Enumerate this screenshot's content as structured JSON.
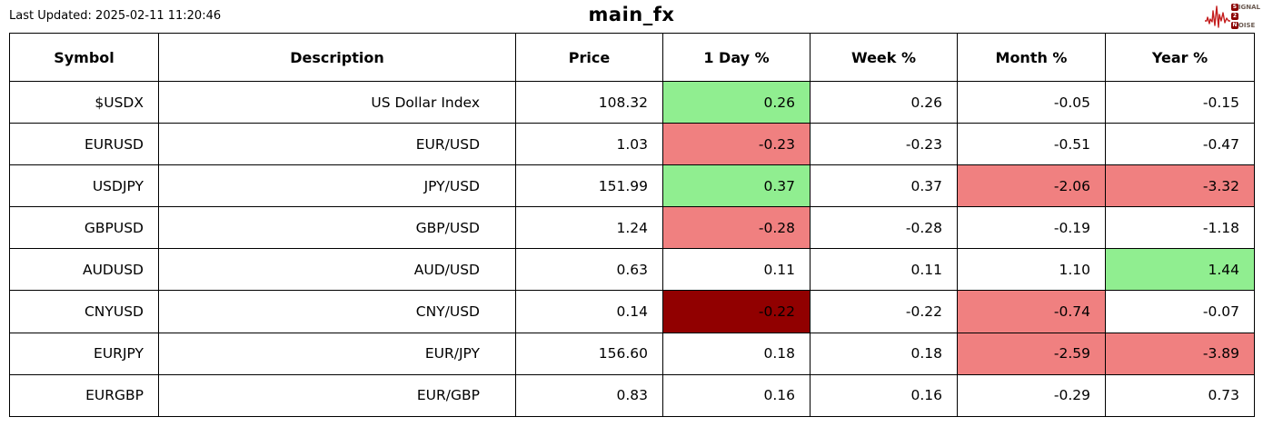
{
  "header": {
    "last_updated": "Last Updated: 2025-02-11 11:20:46",
    "title": "main_fx"
  },
  "logo": {
    "line1_badge": "S",
    "line1_rest": "IGNAL",
    "line2_badge": "2",
    "line2_rest": "",
    "line3_badge": "N",
    "line3_rest": "OISE",
    "waveform_color": "#c41e1e",
    "badge_color": "#8B0000"
  },
  "colors": {
    "up": "#90EE90",
    "down": "#F08080",
    "down_strong": "#910000",
    "text": "#000000"
  },
  "chart_data": {
    "type": "table",
    "title": "main_fx",
    "last_updated": "2025-02-11 11:20:46",
    "columns": [
      "Symbol",
      "Description",
      "Price",
      "1 Day %",
      "Week %",
      "Month %",
      "Year %"
    ],
    "rows": [
      [
        "$USDX",
        "US Dollar Index",
        108.32,
        0.26,
        0.26,
        -0.05,
        -0.15
      ],
      [
        "EURUSD",
        "EUR/USD",
        1.03,
        -0.23,
        -0.23,
        -0.51,
        -0.47
      ],
      [
        "USDJPY",
        "JPY/USD",
        151.99,
        0.37,
        0.37,
        -2.06,
        -3.32
      ],
      [
        "GBPUSD",
        "GBP/USD",
        1.24,
        -0.28,
        -0.28,
        -0.19,
        -1.18
      ],
      [
        "AUDUSD",
        "AUD/USD",
        0.63,
        0.11,
        0.11,
        1.1,
        1.44
      ],
      [
        "CNYUSD",
        "CNY/USD",
        0.14,
        -0.22,
        -0.22,
        -0.74,
        -0.07
      ],
      [
        "EURJPY",
        "EUR/JPY",
        156.6,
        0.18,
        0.18,
        -2.59,
        -3.89
      ],
      [
        "EURGBP",
        "EUR/GBP",
        0.83,
        0.16,
        0.16,
        -0.29,
        0.73
      ]
    ],
    "cell_highlights": [
      {
        "r": 0,
        "c": 3,
        "bg": "up"
      },
      {
        "r": 1,
        "c": 3,
        "bg": "down"
      },
      {
        "r": 2,
        "c": 3,
        "bg": "up"
      },
      {
        "r": 2,
        "c": 5,
        "bg": "down"
      },
      {
        "r": 2,
        "c": 6,
        "bg": "down"
      },
      {
        "r": 3,
        "c": 3,
        "bg": "down"
      },
      {
        "r": 4,
        "c": 6,
        "bg": "up"
      },
      {
        "r": 5,
        "c": 3,
        "bg": "down_strong"
      },
      {
        "r": 5,
        "c": 5,
        "bg": "down"
      },
      {
        "r": 6,
        "c": 5,
        "bg": "down"
      },
      {
        "r": 6,
        "c": 6,
        "bg": "down"
      }
    ],
    "layout_hints": {
      "header_bold": true,
      "data_align": "right",
      "grid": "all-black-borders",
      "numeric_precision": 2
    }
  }
}
